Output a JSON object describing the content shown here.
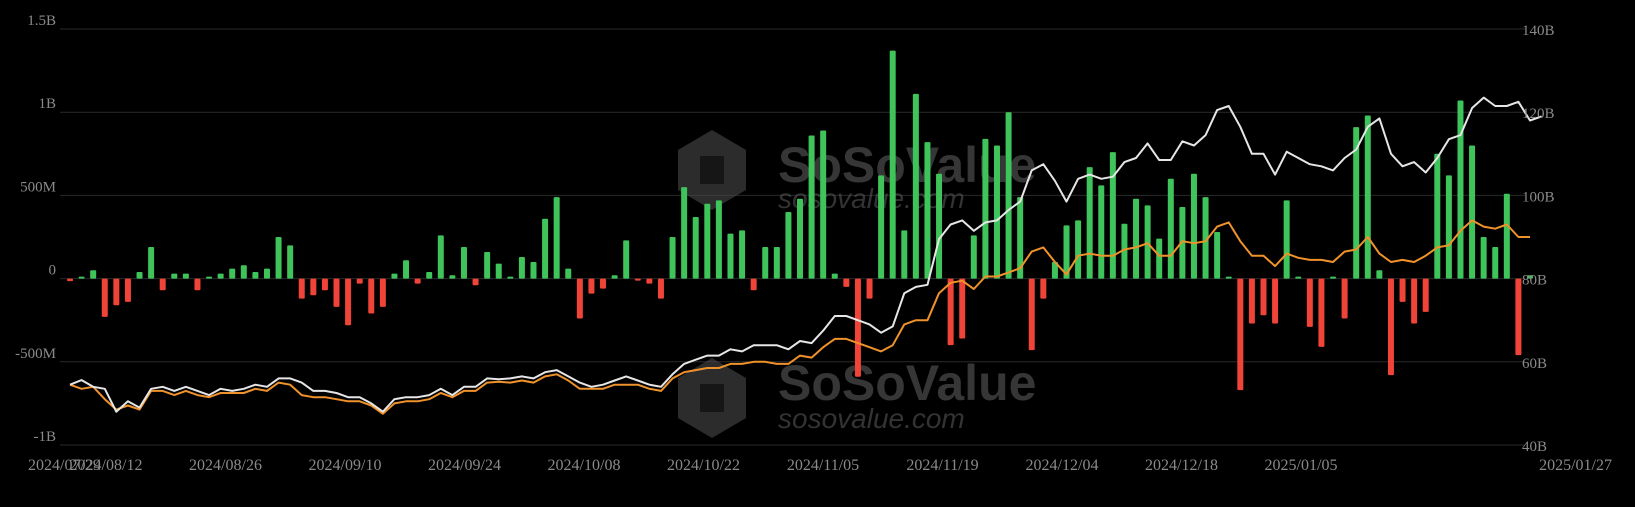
{
  "chart_data": {
    "type": "bar",
    "colors": {
      "positive": "#3ec45a",
      "negative": "#f04438",
      "white_line": "#e6e6e6",
      "orange_line": "#f0922b",
      "grid": "#2a2a2a",
      "text": "#8a8a8a"
    },
    "left_axis": {
      "min": -1000000000,
      "max": 1500000000,
      "ticks": [
        {
          "v": 1500000000,
          "label": "1.5B"
        },
        {
          "v": 1000000000,
          "label": "1B"
        },
        {
          "v": 500000000,
          "label": "500M"
        },
        {
          "v": 0,
          "label": "0"
        },
        {
          "v": -500000000,
          "label": "-500M"
        },
        {
          "v": -1000000000,
          "label": "-1B"
        }
      ]
    },
    "right_axis": {
      "min": 40,
      "max": 140,
      "ticks": [
        {
          "v": 140,
          "label": "140B"
        },
        {
          "v": 120,
          "label": "120B"
        },
        {
          "v": 100,
          "label": "100B"
        },
        {
          "v": 80,
          "label": "80B"
        },
        {
          "v": 60,
          "label": "60B"
        },
        {
          "v": 40,
          "label": "40B"
        }
      ]
    },
    "x_labels": [
      "2024/07/29",
      "2024/08/12",
      "2024/08/26",
      "2024/09/10",
      "2024/09/24",
      "2024/10/08",
      "2024/10/22",
      "2024/11/05",
      "2024/11/19",
      "2024/12/04",
      "2024/12/18",
      "2025/01/05",
      "2025/01/27"
    ],
    "series": [
      {
        "kind": "bar",
        "unit": "M",
        "values": [
          -15,
          0,
          50,
          -230,
          -160,
          -140,
          40,
          190,
          -70,
          30,
          30,
          -70,
          10,
          30,
          60,
          80,
          40,
          60,
          250,
          200,
          -120,
          -100,
          -70,
          -170,
          -280,
          -30,
          -210,
          -170,
          30,
          110,
          -30,
          40,
          260,
          20,
          190,
          -40,
          160,
          90,
          10,
          130,
          100,
          360,
          490,
          60,
          -240,
          -90,
          -60,
          20,
          230,
          -10,
          -30,
          -120,
          250,
          550,
          370,
          450,
          470,
          270,
          290,
          -70,
          190,
          190,
          400,
          480,
          860,
          890,
          30,
          -50,
          -590,
          -120,
          620,
          1370,
          290,
          1110,
          820,
          630,
          -400,
          -360,
          260,
          840,
          800,
          1000,
          490,
          -430,
          -120,
          100,
          320,
          350,
          670,
          560,
          760,
          330,
          480,
          440,
          240,
          600,
          430,
          630,
          490,
          280,
          0,
          -670,
          -270,
          -220,
          -270,
          470,
          0,
          -290,
          -410,
          10,
          -240,
          910,
          980,
          50,
          -580,
          -140,
          -270,
          -200,
          750,
          620,
          1070,
          800,
          250,
          190,
          510,
          -460,
          20
        ]
      },
      {
        "kind": "line",
        "name": "white",
        "unit": "B",
        "values": [
          54.5,
          55.6,
          54.0,
          53.5,
          48.0,
          50.5,
          49.0,
          53.5,
          54.0,
          53.0,
          54.0,
          53.0,
          52.0,
          53.5,
          53.0,
          53.5,
          54.5,
          54.0,
          56.0,
          56.0,
          55.0,
          53.0,
          53.0,
          52.5,
          51.5,
          51.5,
          50.0,
          48.0,
          51.0,
          51.5,
          51.5,
          52.0,
          53.5,
          52.0,
          54.0,
          54.0,
          56.0,
          55.8,
          56.0,
          56.5,
          56.0,
          57.5,
          58.0,
          56.5,
          55.0,
          54.0,
          54.5,
          55.5,
          56.5,
          55.5,
          54.5,
          54.0,
          57.0,
          59.5,
          60.5,
          61.5,
          61.5,
          63.0,
          62.5,
          64.0,
          64.0,
          64.0,
          63.0,
          65.0,
          64.5,
          67.5,
          71.0,
          71.0,
          70.0,
          69.0,
          67.0,
          68.5,
          76.5,
          78.0,
          78.5,
          89.5,
          93.0,
          94.0,
          91.5,
          93.5,
          94.0,
          96.5,
          98.5,
          106.0,
          107.5,
          103.5,
          98.5,
          104.0,
          105.0,
          104.0,
          104.5,
          108.0,
          109.0,
          112.5,
          108.5,
          108.5,
          113.0,
          112.0,
          114.5,
          120.5,
          121.5,
          116.5,
          110.0,
          110.0,
          105.0,
          110.5,
          109.0,
          107.5,
          107.0,
          106.0,
          109.0,
          111.0,
          116.5,
          118.5,
          110.0,
          107.0,
          108.0,
          105.5,
          109.0,
          113.5,
          114.5,
          121.0,
          123.5,
          121.5,
          121.5,
          122.5,
          118.0,
          119.0
        ]
      },
      {
        "kind": "line",
        "name": "orange",
        "unit": "B",
        "values": [
          54.5,
          53.5,
          54.0,
          51.0,
          48.5,
          49.5,
          48.5,
          53.0,
          53.0,
          52.0,
          53.0,
          52.0,
          51.5,
          52.5,
          52.5,
          52.5,
          53.5,
          53.0,
          55.0,
          54.5,
          52.0,
          51.5,
          51.5,
          51.0,
          50.5,
          50.5,
          49.5,
          47.5,
          50.0,
          50.5,
          50.5,
          51.0,
          52.5,
          51.5,
          53.0,
          53.0,
          55.0,
          55.2,
          55.0,
          55.5,
          55.0,
          56.5,
          57.0,
          55.5,
          53.5,
          53.5,
          53.5,
          54.5,
          54.5,
          54.5,
          53.5,
          53.0,
          56.0,
          57.5,
          58.0,
          58.5,
          58.5,
          59.5,
          59.5,
          60.0,
          60.0,
          59.5,
          59.5,
          61.5,
          61.0,
          63.5,
          65.5,
          65.5,
          64.5,
          63.5,
          62.5,
          64.0,
          69.0,
          70.0,
          70.0,
          76.5,
          79.0,
          79.5,
          77.5,
          80.5,
          80.5,
          81.5,
          82.5,
          86.5,
          87.5,
          84.0,
          81.0,
          85.5,
          86.0,
          85.5,
          85.5,
          87.0,
          87.5,
          88.5,
          85.5,
          85.5,
          89.0,
          88.5,
          89.0,
          92.5,
          93.5,
          89.0,
          85.5,
          85.5,
          83.0,
          86.0,
          85.0,
          84.5,
          84.5,
          84.0,
          86.5,
          87.0,
          90.0,
          86.0,
          84.0,
          84.5,
          84.0,
          85.5,
          87.5,
          88.0,
          91.5,
          94.0,
          92.5,
          92.0,
          93.0,
          90.0,
          90.0
        ]
      }
    ]
  },
  "watermark": {
    "brand": "SoSoValue",
    "domain": "sosovalue.com"
  }
}
